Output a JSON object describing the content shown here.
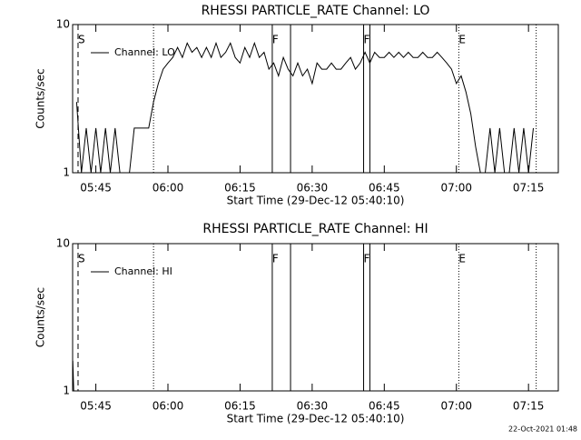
{
  "chart_data": [
    {
      "type": "line",
      "title": "RHESSI PARTICLE_RATE Channel: LO",
      "ylabel": "Counts/sec",
      "xlabel": "Start Time (29-Dec-12 05:40:10)",
      "xlim": [
        340.17,
        441.2
      ],
      "xticks": [
        {
          "value": 345,
          "label": "05:45"
        },
        {
          "value": 360,
          "label": "06:00"
        },
        {
          "value": 375,
          "label": "06:15"
        },
        {
          "value": 390,
          "label": "06:30"
        },
        {
          "value": 405,
          "label": "06:45"
        },
        {
          "value": 420,
          "label": "07:00"
        },
        {
          "value": 435,
          "label": "07:15"
        }
      ],
      "ylim": [
        1,
        10
      ],
      "yticks": [
        1,
        10
      ],
      "ylog": true,
      "markers": [
        {
          "x": 341.3,
          "label": "S",
          "style": "dashed"
        },
        {
          "x": 357.0,
          "style": "dotted"
        },
        {
          "x": 381.7,
          "label": "F",
          "style": "solid"
        },
        {
          "x": 385.5,
          "style": "solid"
        },
        {
          "x": 400.7,
          "label": "F",
          "style": "solid"
        },
        {
          "x": 402.0,
          "style": "solid"
        },
        {
          "x": 420.5,
          "label": "E",
          "style": "dotted"
        },
        {
          "x": 436.6,
          "style": "dotted"
        }
      ],
      "series": [
        {
          "name": "Channel: LO",
          "color": "#000000",
          "x": [
            341,
            342,
            343,
            344,
            345,
            346,
            347,
            348,
            349,
            350,
            351,
            352,
            353,
            354,
            355,
            356,
            357,
            358,
            359,
            360,
            361,
            362,
            363,
            364,
            365,
            366,
            367,
            368,
            369,
            370,
            371,
            372,
            373,
            374,
            375,
            376,
            377,
            378,
            379,
            380,
            381,
            382,
            383,
            384,
            385,
            386,
            387,
            388,
            389,
            390,
            391,
            392,
            393,
            394,
            395,
            396,
            397,
            398,
            399,
            400,
            401,
            402,
            403,
            404,
            405,
            406,
            407,
            408,
            409,
            410,
            411,
            412,
            413,
            414,
            415,
            416,
            417,
            418,
            419,
            420,
            421,
            422,
            423,
            424,
            425,
            426,
            427,
            428,
            429,
            430,
            431,
            432,
            433,
            434,
            435,
            436
          ],
          "values": [
            3,
            1,
            2,
            1,
            2,
            1,
            2,
            1,
            2,
            1,
            1,
            1,
            2,
            2,
            2,
            2,
            3,
            4,
            5,
            5.5,
            6,
            7,
            6,
            7.5,
            6.5,
            7,
            6,
            7,
            6,
            7.5,
            6,
            6.5,
            7.5,
            6,
            5.5,
            7,
            6,
            7.5,
            6,
            6.5,
            5,
            5.5,
            4.5,
            6,
            5,
            4.5,
            5.5,
            4.5,
            5,
            4,
            5.5,
            5,
            5,
            5.5,
            5,
            5,
            5.5,
            6,
            5,
            5.5,
            6.5,
            5.5,
            6.5,
            6,
            6,
            6.5,
            6,
            6.5,
            6,
            6.5,
            6,
            6,
            6.5,
            6,
            6,
            6.5,
            6,
            5.5,
            5,
            4,
            4.5,
            3.5,
            2.5,
            1.5,
            1,
            1,
            2,
            1,
            2,
            1,
            1,
            2,
            1,
            2,
            1,
            2
          ]
        }
      ]
    },
    {
      "type": "line",
      "title": "RHESSI PARTICLE_RATE Channel: HI",
      "ylabel": "Counts/sec",
      "xlabel": "Start Time (29-Dec-12 05:40:10)",
      "xlim": [
        340.17,
        441.2
      ],
      "xticks": [
        {
          "value": 345,
          "label": "05:45"
        },
        {
          "value": 360,
          "label": "06:00"
        },
        {
          "value": 375,
          "label": "06:15"
        },
        {
          "value": 390,
          "label": "06:30"
        },
        {
          "value": 405,
          "label": "06:45"
        },
        {
          "value": 420,
          "label": "07:00"
        },
        {
          "value": 435,
          "label": "07:15"
        }
      ],
      "ylim": [
        1,
        10
      ],
      "yticks": [
        1,
        10
      ],
      "ylog": true,
      "markers": [
        {
          "x": 341.3,
          "label": "S",
          "style": "dashed"
        },
        {
          "x": 357.0,
          "style": "dotted"
        },
        {
          "x": 381.7,
          "label": "F",
          "style": "solid"
        },
        {
          "x": 385.5,
          "style": "solid"
        },
        {
          "x": 400.7,
          "label": "F",
          "style": "solid"
        },
        {
          "x": 402.0,
          "style": "solid"
        },
        {
          "x": 420.5,
          "label": "E",
          "style": "dotted"
        },
        {
          "x": 436.6,
          "style": "dotted"
        }
      ],
      "series": [
        {
          "name": "Channel: HI",
          "color": "#000000",
          "x": [
            340.2,
            340.4
          ],
          "values": [
            1.6,
            1
          ]
        }
      ]
    }
  ],
  "footer": "22-Oct-2021 01:48"
}
